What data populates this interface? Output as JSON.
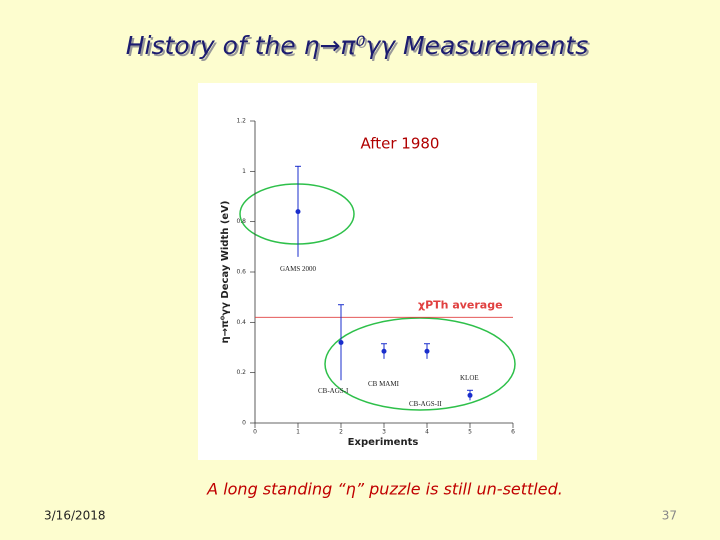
{
  "chart_data": {
    "type": "errorbar",
    "title": "History of the η→π⁰γγ Measurements",
    "subtitle": "After 1980",
    "xlabel": "Experiments",
    "ylabel": "η→π⁰γγ Decay Width (eV)",
    "x": [
      1,
      2,
      3,
      4,
      5
    ],
    "values": [
      0.84,
      0.32,
      0.285,
      0.285,
      0.11
    ],
    "errors": [
      0.18,
      0.15,
      0.03,
      0.03,
      0.02
    ],
    "point_labels": [
      "GAMS 2000",
      "CB-AGS-I",
      "CB MAMI",
      "CB-AGS-II",
      "KLOE"
    ],
    "color": "#1a2ecc",
    "reference_line": {
      "value": 0.42,
      "label": "χPTh average",
      "color": "#e04040"
    },
    "xlim": [
      0,
      6
    ],
    "xticks": [
      0,
      1,
      2,
      3,
      4,
      5,
      6
    ],
    "ylim": [
      0,
      1.2
    ],
    "yticks": [
      0,
      0.2,
      0.4,
      0.6,
      0.8,
      1,
      1.2
    ],
    "footer": "A long standing “η” puzzle is still un-settled.",
    "date": "3/16/2018",
    "page_number": "37"
  }
}
